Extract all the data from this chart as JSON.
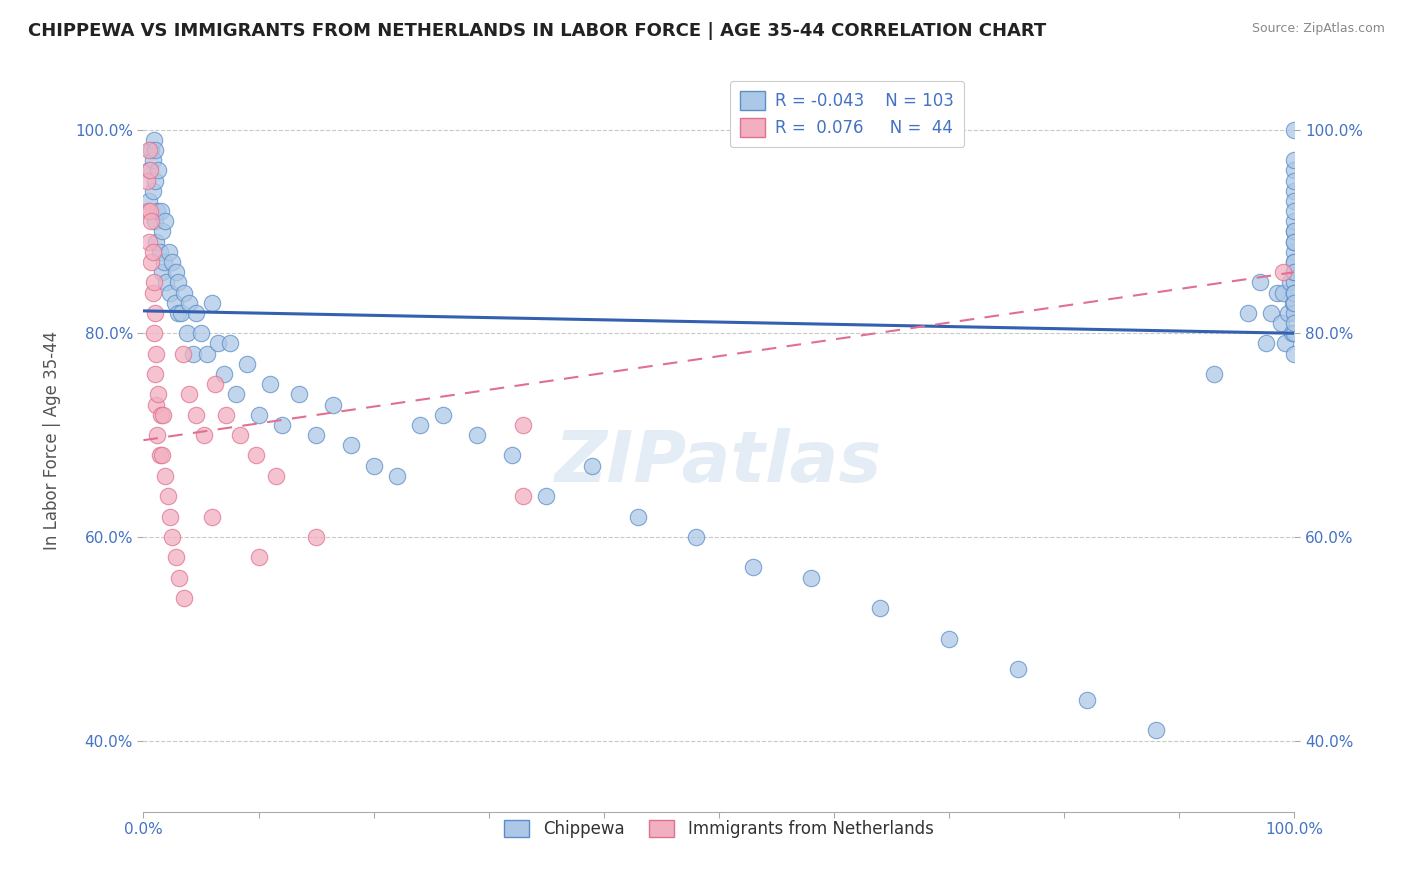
{
  "title": "CHIPPEWA VS IMMIGRANTS FROM NETHERLANDS IN LABOR FORCE | AGE 35-44 CORRELATION CHART",
  "source_text": "Source: ZipAtlas.com",
  "ylabel": "In Labor Force | Age 35-44",
  "xlim": [
    0.0,
    1.0
  ],
  "ylim": [
    0.33,
    1.06
  ],
  "ytick_positions": [
    0.4,
    0.6,
    0.8,
    1.0
  ],
  "ytick_labels": [
    "40.0%",
    "60.0%",
    "80.0%",
    "100.0%"
  ],
  "legend_labels": [
    "Chippewa",
    "Immigrants from Netherlands"
  ],
  "legend_R_values": [
    "-0.043",
    "0.076"
  ],
  "legend_N_values": [
    "103",
    "44"
  ],
  "blue_color": "#adc8e6",
  "pink_color": "#f2afc0",
  "blue_edge_color": "#5b8dc8",
  "pink_edge_color": "#e07090",
  "blue_line_color": "#3460b0",
  "pink_line_color": "#e07090",
  "blue_trend": [
    0.822,
    0.8
  ],
  "pink_trend": [
    0.695,
    0.86
  ],
  "watermark_text": "ZIPatlas",
  "background_color": "#ffffff",
  "grid_color": "#bbbbbb",
  "blue_scatter_x": [
    0.005,
    0.005,
    0.007,
    0.008,
    0.008,
    0.009,
    0.01,
    0.01,
    0.01,
    0.011,
    0.012,
    0.013,
    0.014,
    0.015,
    0.016,
    0.016,
    0.018,
    0.019,
    0.02,
    0.022,
    0.023,
    0.025,
    0.027,
    0.028,
    0.03,
    0.03,
    0.033,
    0.035,
    0.038,
    0.04,
    0.043,
    0.046,
    0.05,
    0.055,
    0.06,
    0.065,
    0.07,
    0.075,
    0.08,
    0.09,
    0.1,
    0.11,
    0.12,
    0.135,
    0.15,
    0.165,
    0.18,
    0.2,
    0.22,
    0.24,
    0.26,
    0.29,
    0.32,
    0.35,
    0.39,
    0.43,
    0.48,
    0.53,
    0.58,
    0.64,
    0.7,
    0.76,
    0.82,
    0.88,
    0.93,
    0.96,
    0.97,
    0.975,
    0.98,
    0.985,
    0.988,
    0.99,
    0.992,
    0.994,
    0.996,
    0.998,
    0.999,
    1.0,
    1.0,
    1.0,
    1.0,
    1.0,
    1.0,
    1.0,
    1.0,
    1.0,
    1.0,
    1.0,
    1.0,
    1.0,
    1.0,
    1.0,
    1.0,
    1.0,
    1.0,
    1.0,
    1.0,
    1.0,
    1.0,
    1.0,
    1.0,
    1.0,
    1.0
  ],
  "blue_scatter_y": [
    0.93,
    0.96,
    0.98,
    0.94,
    0.97,
    0.99,
    0.91,
    0.95,
    0.98,
    0.89,
    0.92,
    0.96,
    0.88,
    0.92,
    0.86,
    0.9,
    0.87,
    0.91,
    0.85,
    0.88,
    0.84,
    0.87,
    0.83,
    0.86,
    0.82,
    0.85,
    0.82,
    0.84,
    0.8,
    0.83,
    0.78,
    0.82,
    0.8,
    0.78,
    0.83,
    0.79,
    0.76,
    0.79,
    0.74,
    0.77,
    0.72,
    0.75,
    0.71,
    0.74,
    0.7,
    0.73,
    0.69,
    0.67,
    0.66,
    0.71,
    0.72,
    0.7,
    0.68,
    0.64,
    0.67,
    0.62,
    0.6,
    0.57,
    0.56,
    0.53,
    0.5,
    0.47,
    0.44,
    0.41,
    0.76,
    0.82,
    0.85,
    0.79,
    0.82,
    0.84,
    0.81,
    0.84,
    0.79,
    0.82,
    0.85,
    0.8,
    0.83,
    0.86,
    0.88,
    0.82,
    0.85,
    0.87,
    0.9,
    0.84,
    0.86,
    0.89,
    0.91,
    0.94,
    0.84,
    0.87,
    0.9,
    0.93,
    0.96,
    0.8,
    0.83,
    0.86,
    0.89,
    0.92,
    0.95,
    0.97,
    0.78,
    0.81,
    1.0
  ],
  "pink_scatter_x": [
    0.003,
    0.004,
    0.005,
    0.005,
    0.006,
    0.006,
    0.007,
    0.007,
    0.008,
    0.008,
    0.009,
    0.009,
    0.01,
    0.01,
    0.011,
    0.011,
    0.012,
    0.013,
    0.014,
    0.015,
    0.016,
    0.017,
    0.019,
    0.021,
    0.023,
    0.025,
    0.028,
    0.031,
    0.035,
    0.04,
    0.046,
    0.053,
    0.062,
    0.072,
    0.084,
    0.098,
    0.115,
    0.034,
    0.06,
    0.1,
    0.15,
    0.33,
    0.99,
    0.33
  ],
  "pink_scatter_y": [
    0.95,
    0.92,
    0.98,
    0.89,
    0.92,
    0.96,
    0.87,
    0.91,
    0.84,
    0.88,
    0.8,
    0.85,
    0.76,
    0.82,
    0.73,
    0.78,
    0.7,
    0.74,
    0.68,
    0.72,
    0.68,
    0.72,
    0.66,
    0.64,
    0.62,
    0.6,
    0.58,
    0.56,
    0.54,
    0.74,
    0.72,
    0.7,
    0.75,
    0.72,
    0.7,
    0.68,
    0.66,
    0.78,
    0.62,
    0.58,
    0.6,
    0.71,
    0.86,
    0.64
  ]
}
